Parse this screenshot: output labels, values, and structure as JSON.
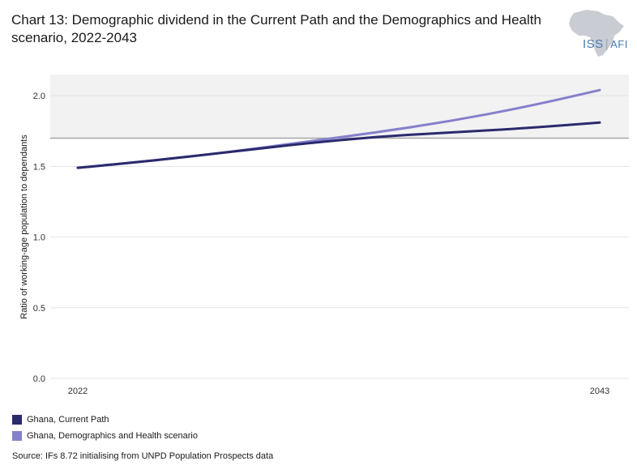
{
  "title_lines": [
    "Chart 13: Demographic dividend in the Current Path and the Demographics and Health",
    "scenario, 2022-2043"
  ],
  "logo": {
    "text_left": "ISS",
    "text_right": "AFI",
    "icon": "africa-map-icon"
  },
  "source": "Source: IFs 8.72 initialising from UNPD Population Prospects data",
  "colors": {
    "current_path": "#2b2a6e",
    "scenario": "#8580cc",
    "band": "#f2f2f2",
    "threshold": "#a6a6a6"
  },
  "chart_data": {
    "type": "line",
    "ylabel": "Ratio of working-age population to dependants",
    "xlabel": "",
    "ylim": [
      0,
      2.15
    ],
    "yticks": [
      0.0,
      0.5,
      1.0,
      1.5,
      2.0
    ],
    "ytick_labels": [
      "0.0",
      "0.5",
      "1.0",
      "1.5",
      "2.0"
    ],
    "xticks": [
      2022,
      2043
    ],
    "xtick_labels": [
      "2022",
      "2043"
    ],
    "xlim": [
      2022,
      2043
    ],
    "threshold": 1.7,
    "shaded_above_threshold": true,
    "grid": true,
    "legend_position": "bottom-left",
    "x": [
      2022,
      2025,
      2028,
      2031,
      2034,
      2037,
      2040,
      2043
    ],
    "series": [
      {
        "name": "Ghana, Current Path",
        "values": [
          1.49,
          1.54,
          1.6,
          1.66,
          1.71,
          1.74,
          1.77,
          1.81
        ]
      },
      {
        "name": "Ghana, Demographics and Health scenario",
        "values": [
          1.49,
          1.54,
          1.6,
          1.67,
          1.74,
          1.82,
          1.92,
          2.04
        ]
      }
    ]
  }
}
